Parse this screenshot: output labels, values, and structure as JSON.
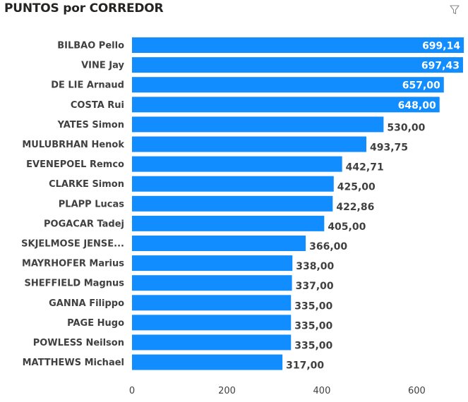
{
  "title": "PUNTOS por CORREDOR",
  "icons": {
    "filter": "filter-icon"
  },
  "colors": {
    "bar": "#118DFF",
    "label_inside": "#ffffff",
    "label_outside": "#404040"
  },
  "chart_data": {
    "type": "bar",
    "orientation": "horizontal",
    "title": "PUNTOS por CORREDOR",
    "categories": [
      "BILBAO Pello",
      "VINE Jay",
      "DE LIE Arnaud",
      "COSTA Rui",
      "YATES Simon",
      "MULUBRHAN Henok",
      "EVENEPOEL Remco",
      "CLARKE Simon",
      "PLAPP Lucas",
      "POGACAR Tadej",
      "SKJELMOSE JENSE...",
      "MAYRHOFER Marius",
      "SHEFFIELD Magnus",
      "GANNA Filippo",
      "PAGE Hugo",
      "POWLESS Neilson",
      "MATTHEWS Michael"
    ],
    "values": [
      699.14,
      697.43,
      657.0,
      648.0,
      530.0,
      493.75,
      442.71,
      425.0,
      422.86,
      405.0,
      366.0,
      338.0,
      337.0,
      335.0,
      335.0,
      335.0,
      317.0
    ],
    "value_labels": [
      "699,14",
      "697,43",
      "657,00",
      "648,00",
      "530,00",
      "493,75",
      "442,71",
      "425,00",
      "422,86",
      "405,00",
      "366,00",
      "338,00",
      "337,00",
      "335,00",
      "335,00",
      "335,00",
      "317,00"
    ],
    "xticks": [
      0,
      200,
      400,
      600
    ],
    "xtick_labels": [
      "0",
      "200",
      "400",
      "600"
    ],
    "xlim": [
      0,
      700
    ],
    "grid": false,
    "legend": "none"
  }
}
